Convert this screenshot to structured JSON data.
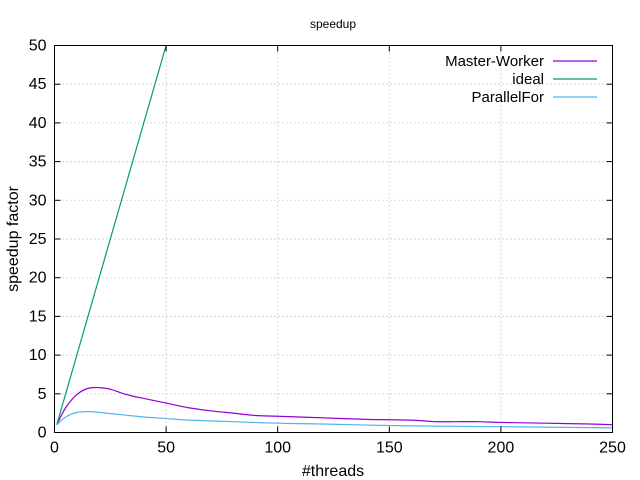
{
  "chart_data": {
    "type": "line",
    "title": "speedup",
    "xlabel": "#threads",
    "ylabel": "speedup factor",
    "xlim": [
      0,
      250
    ],
    "ylim": [
      0,
      50
    ],
    "xticks": [
      0,
      50,
      100,
      150,
      200,
      250
    ],
    "yticks": [
      0,
      5,
      10,
      15,
      20,
      25,
      30,
      35,
      40,
      45,
      50
    ],
    "grid": true,
    "legend_position": "top-right",
    "series": [
      {
        "name": "Master-Worker",
        "color": "#9400d3",
        "x": [
          1,
          5,
          10,
          15,
          20,
          25,
          30,
          35,
          40,
          50,
          60,
          70,
          80,
          90,
          100,
          120,
          140,
          160,
          170,
          180,
          190,
          200,
          220,
          240,
          250
        ],
        "y": [
          1.0,
          3.2,
          4.9,
          5.7,
          5.8,
          5.6,
          5.1,
          4.7,
          4.4,
          3.8,
          3.2,
          2.8,
          2.5,
          2.2,
          2.1,
          1.9,
          1.7,
          1.6,
          1.4,
          1.4,
          1.4,
          1.3,
          1.2,
          1.1,
          1.0
        ]
      },
      {
        "name": "ideal",
        "color": "#009e73",
        "x": [
          1,
          50
        ],
        "y": [
          1,
          50
        ]
      },
      {
        "name": "ParallelFor",
        "color": "#56b4e9",
        "x": [
          1,
          5,
          10,
          15,
          20,
          30,
          40,
          50,
          60,
          70,
          80,
          100,
          120,
          150,
          180,
          200,
          250
        ],
        "y": [
          1.0,
          2.0,
          2.6,
          2.7,
          2.6,
          2.3,
          2.0,
          1.8,
          1.6,
          1.5,
          1.4,
          1.2,
          1.1,
          0.9,
          0.8,
          0.75,
          0.6
        ]
      }
    ]
  }
}
